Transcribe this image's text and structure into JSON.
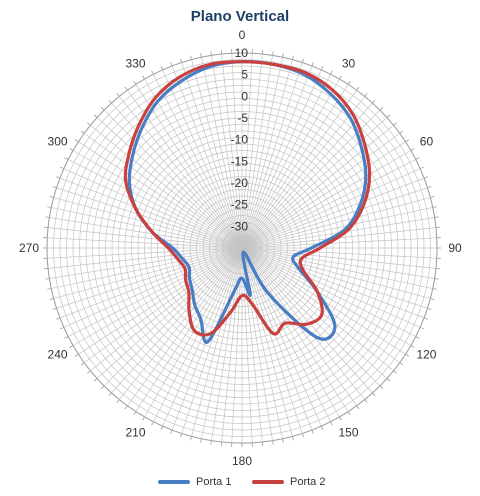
{
  "chart_data": {
    "type": "line",
    "subtype": "polar",
    "title": "Plano Vertical",
    "angle_labels": [
      "0",
      "30",
      "60",
      "90",
      "120",
      "150",
      "180",
      "210",
      "240",
      "270",
      "300",
      "330"
    ],
    "radial_ticks": [
      10,
      5,
      0,
      -5,
      -10,
      -15,
      -20,
      -25,
      -30
    ],
    "radial_tick_labels": [
      "10",
      "5",
      "0",
      "-5",
      "-10",
      "-15",
      "-20",
      "-25",
      "-30"
    ],
    "rlim": [
      -35,
      10
    ],
    "grid": true,
    "legend_position": "bottom",
    "series": [
      {
        "name": "Porta 1",
        "color": "#4a7ec4",
        "angles": [
          0,
          10,
          20,
          30,
          40,
          50,
          60,
          70,
          80,
          90,
          100,
          110,
          120,
          130,
          140,
          150,
          160,
          170,
          180,
          190,
          200,
          210,
          220,
          230,
          240,
          250,
          260,
          270,
          280,
          290,
          300,
          310,
          320,
          330,
          340,
          350
        ],
        "values": [
          8,
          8,
          7.5,
          6,
          4,
          1,
          -2,
          -6,
          -11,
          -19,
          -23,
          -21,
          -15,
          -7,
          -8,
          -23,
          -34,
          -24,
          -28,
          -25,
          -12,
          -16,
          -18,
          -20,
          -21,
          -22,
          -21,
          -19,
          -14,
          -9,
          -5,
          -2,
          1,
          4,
          6,
          7.5
        ]
      },
      {
        "name": "Porta 2",
        "color": "#c8413f",
        "angles": [
          0,
          10,
          20,
          30,
          40,
          50,
          60,
          70,
          80,
          90,
          100,
          110,
          120,
          130,
          140,
          150,
          160,
          170,
          180,
          190,
          200,
          210,
          220,
          230,
          240,
          250,
          260,
          270,
          280,
          290,
          300,
          310,
          320,
          330,
          340,
          350
        ],
        "values": [
          8,
          8,
          8,
          7,
          5,
          2,
          -1,
          -5,
          -10,
          -17,
          -21,
          -20,
          -15,
          -11,
          -12,
          -15,
          -14,
          -22,
          -24,
          -20,
          -14,
          -13,
          -16,
          -19,
          -20,
          -21,
          -20,
          -18,
          -14,
          -9,
          -4,
          -1,
          2,
          5,
          7,
          8
        ]
      }
    ]
  }
}
